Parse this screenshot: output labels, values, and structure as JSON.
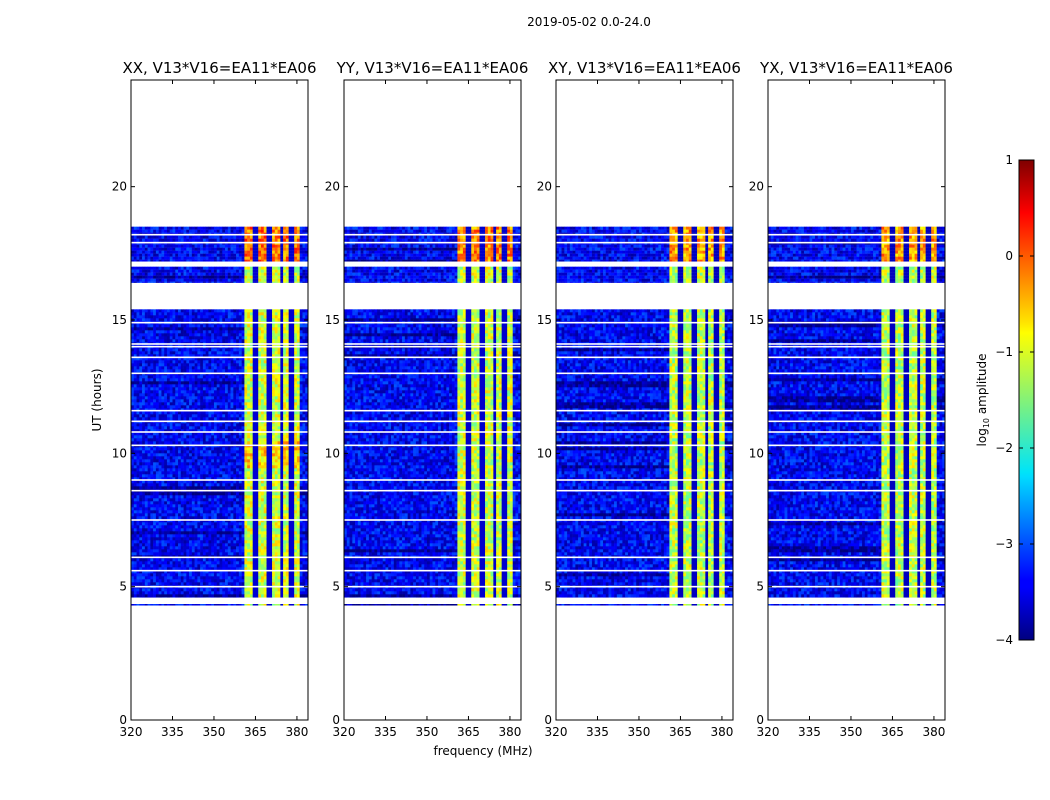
{
  "chart_data": {
    "type": "heatmap",
    "suptitle": "2019-05-02 0.0-24.0",
    "xlabel": "frequency (MHz)",
    "ylabel": "UT (hours)",
    "xlim": [
      320,
      384
    ],
    "ylim": [
      0,
      24
    ],
    "xticks": [
      320,
      335,
      350,
      365,
      380
    ],
    "yticks": [
      0,
      5,
      10,
      15,
      20
    ],
    "panels": [
      {
        "title": "XX, V13*V16=EA11*EA06",
        "rfi_strength": 1.0
      },
      {
        "title": "YY, V13*V16=EA11*EA06",
        "rfi_strength": 0.95
      },
      {
        "title": "XY, V13*V16=EA11*EA06",
        "rfi_strength": 0.85
      },
      {
        "title": "YX, V13*V16=EA11*EA06",
        "rfi_strength": 0.85
      }
    ],
    "data_rows_ut": [
      [
        4.3,
        4.35
      ],
      [
        4.6,
        15.4
      ],
      [
        16.4,
        17.0
      ],
      [
        17.2,
        18.5
      ]
    ],
    "rfi_band_mhz": [
      361,
      381
    ],
    "rfi_subband_gaps_mhz": [
      365,
      370,
      374.5,
      378
    ],
    "background_level_log10": -3.4,
    "rfi_level_log10": -1.1,
    "colorbar": {
      "label": "log10 amplitude",
      "label_main": "log",
      "label_sub": "10",
      "label_tail": " amplitude",
      "min": -4,
      "max": 1,
      "ticks": [
        -4,
        -3,
        -2,
        -1,
        0,
        1
      ],
      "colormap": "jet"
    }
  }
}
